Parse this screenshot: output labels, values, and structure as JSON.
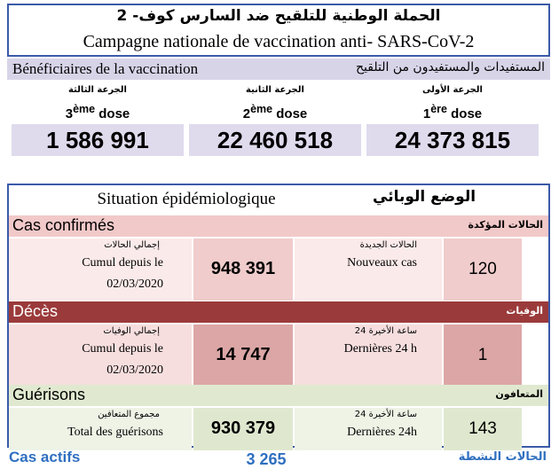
{
  "header": {
    "title_ar": "الحملة الوطنية للتلقيح ضد السارس كوف- 2",
    "title_fr": "Campagne nationale de vaccination anti- SARS-CoV-2"
  },
  "vaccination": {
    "label_fr": "Bénéficiaires de la vaccination",
    "label_ar": "المستفيدات والمستفيدون من التلقيح",
    "doses": [
      {
        "label_ar": "الجرعة الثالثة",
        "num": "3",
        "sup": "ème",
        "word": "dose",
        "value": "1 586 991"
      },
      {
        "label_ar": "الجرعة الثانية",
        "num": "2",
        "sup": "ème",
        "word": "dose",
        "value": "22 460 518"
      },
      {
        "label_ar": "الجرعة الأولى",
        "num": "1",
        "sup": "ère",
        "word": "dose",
        "value": "24 373 815"
      }
    ]
  },
  "epidemiology": {
    "label_fr": "Situation épidémiologique",
    "label_ar": "الوضع الوبائي",
    "sections": [
      {
        "label_fr": "Cas confirmés",
        "label_ar": "الحالات المؤكدة",
        "total_ar": "إجمالي الحالات",
        "total_fr": "Cumul depuis le",
        "total_date": "02/03/2020",
        "total": "948 391",
        "recent_ar": "الحالات الجديدة",
        "recent_fr": "Nouveaux cas",
        "recent": "120"
      },
      {
        "label_fr": "Décès",
        "label_ar": "الوفيات",
        "total_ar": "إجمالي الوفيات",
        "total_fr": "Cumul depuis le",
        "total_date": "02/03/2020",
        "total": "14 747",
        "recent_ar": "24 ساعة الأخيرة",
        "recent_fr": "Dernières 24 h",
        "recent": "1"
      },
      {
        "label_fr": "Guérisons",
        "label_ar": "المتعافون",
        "total_ar": "مجموع المتعافين",
        "total_fr": "Total des guérisons",
        "total": "930 379",
        "recent_ar": "24 ساعة الأخيرة",
        "recent_fr": "Dernières 24h",
        "recent": "143"
      }
    ]
  },
  "active": {
    "label_fr": "Cas actifs",
    "value": "3 265",
    "label_ar": "الحالات النشطة"
  }
}
